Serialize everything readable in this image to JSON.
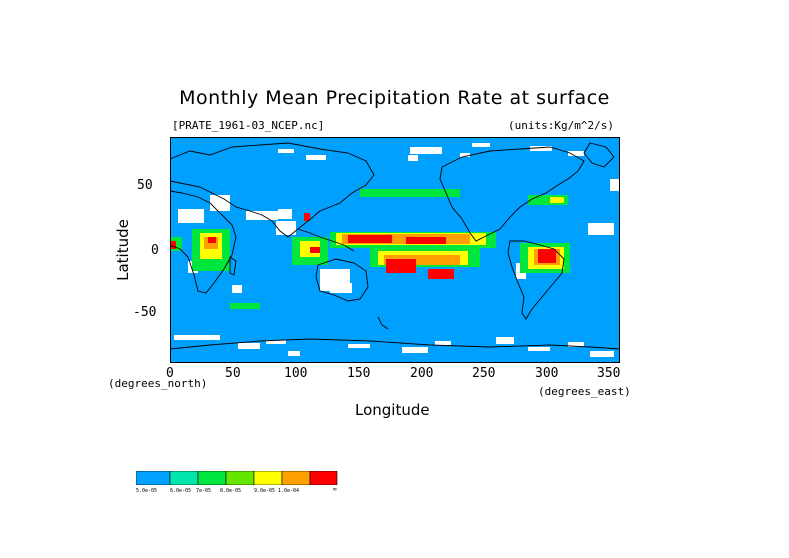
{
  "title": "Monthly Mean Precipitation Rate at surface",
  "file_label": "[PRATE_1961-03_NCEP.nc]",
  "units_label": "(units:Kg/m^2/s)",
  "x_axis": {
    "title": "Longitude",
    "ticks": [
      "0",
      "50",
      "100",
      "150",
      "200",
      "250",
      "300",
      "350"
    ],
    "left_note": "(degrees_north)",
    "right_note": "(degrees_east)"
  },
  "y_axis": {
    "title": "Latitude",
    "ticks": [
      "50",
      "0",
      "-50"
    ]
  },
  "legend": {
    "colors": [
      "#00a0ff",
      "#00e6aa",
      "#00e63c",
      "#64e600",
      "#ffff00",
      "#ffa000",
      "#ff0000"
    ],
    "labels": [
      "5.0e-05",
      "6.0e-05",
      "7e-05",
      "8.0e-05",
      "9.0e-05",
      "1.0e-04",
      "∞"
    ]
  },
  "colors": {
    "ocean": "#00a0ff",
    "missing": "#ffffff",
    "coast": "#000000"
  }
}
